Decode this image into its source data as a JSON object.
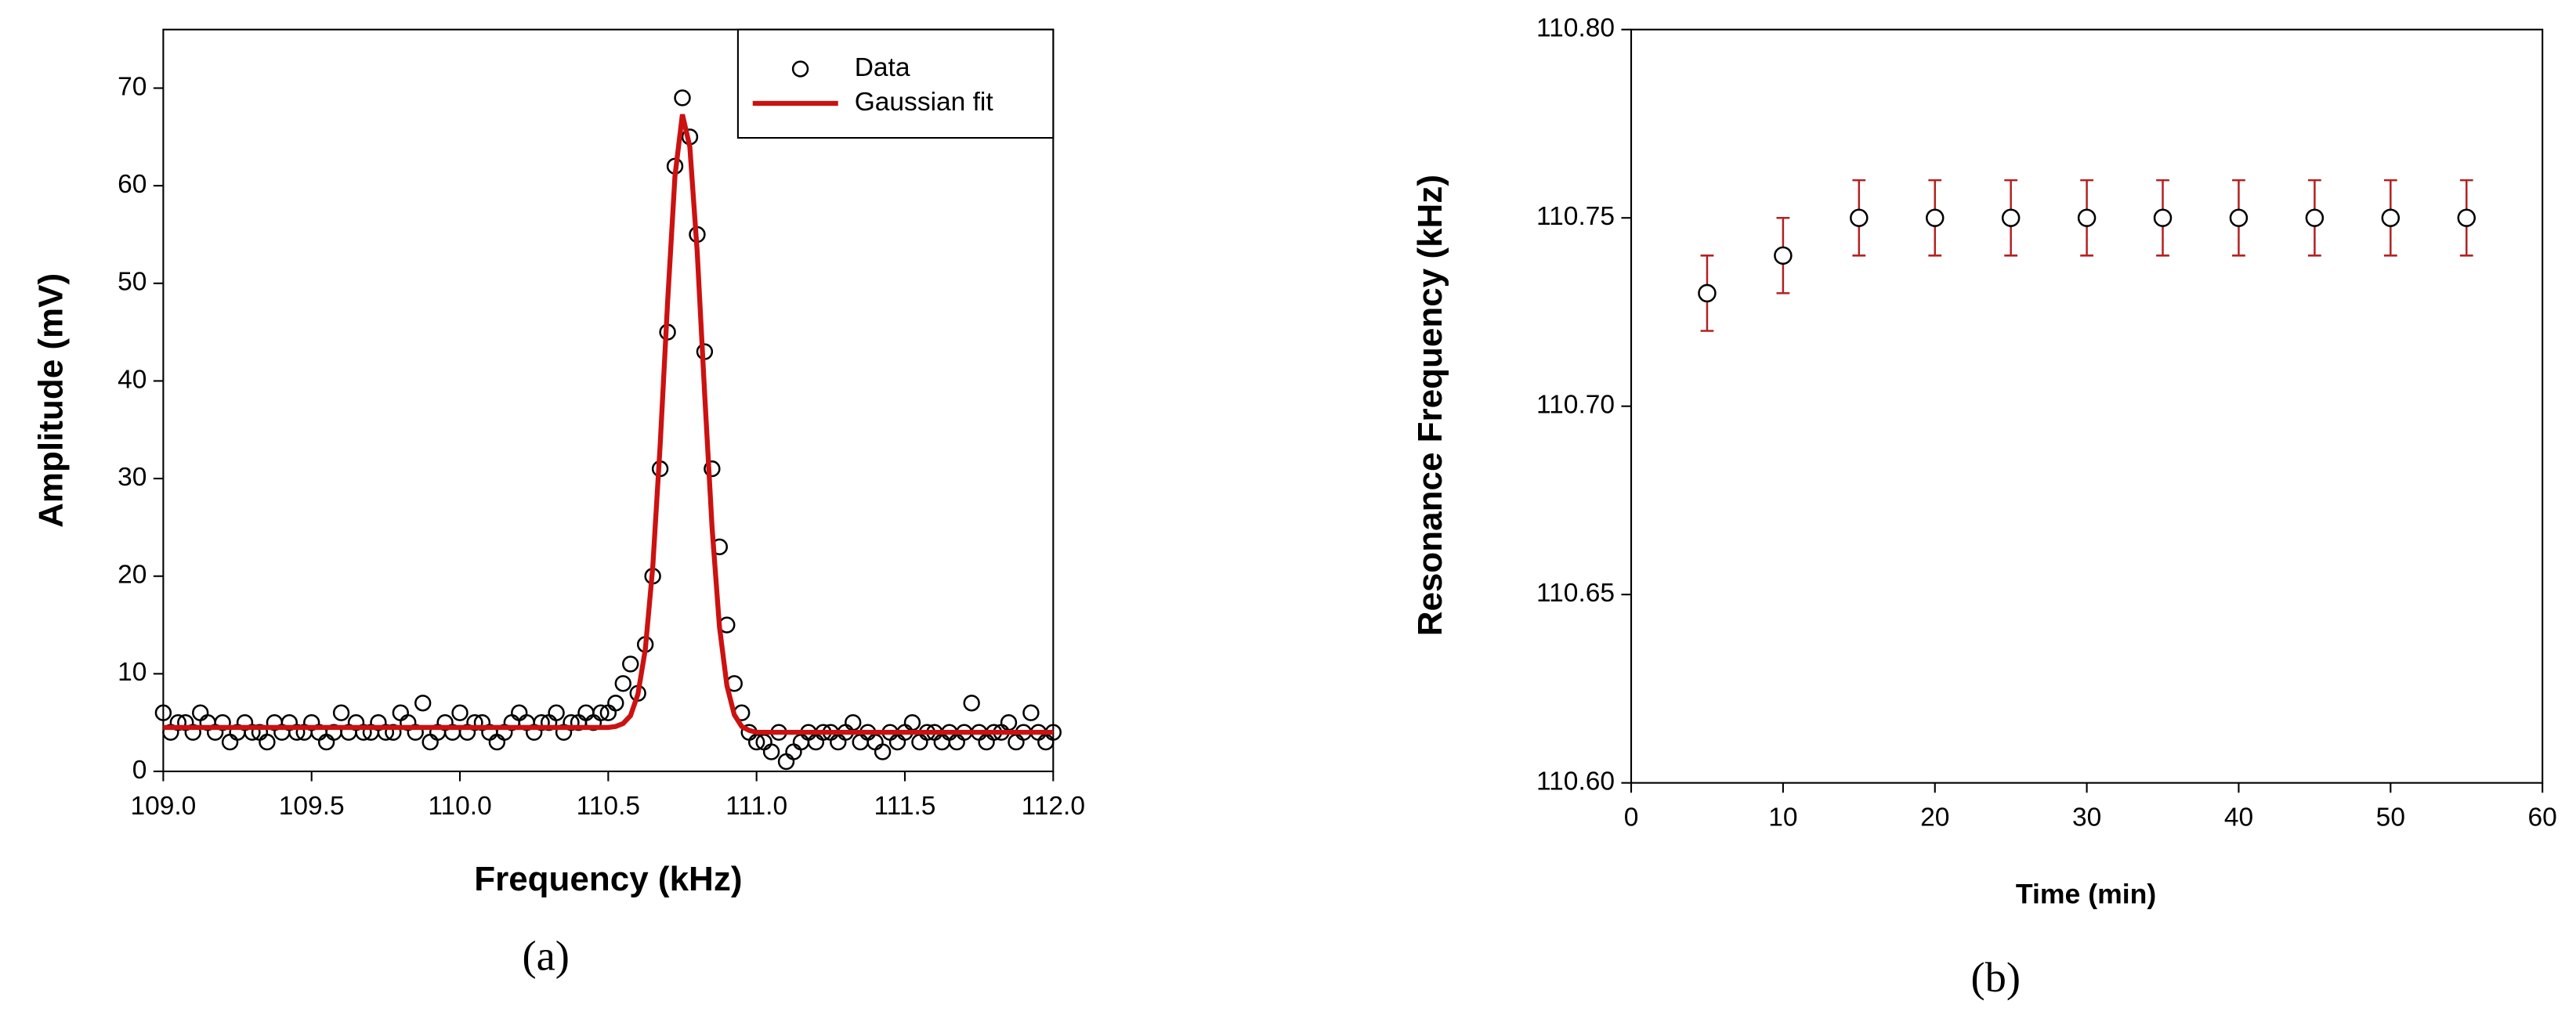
{
  "chart_data": [
    {
      "type": "scatter",
      "panel_label": "(a)",
      "x_label": "Frequency (kHz)",
      "y_label": "Amplitude (mV)",
      "x": [
        109.0,
        109.025,
        109.05,
        109.075,
        109.1,
        109.125,
        109.15,
        109.175,
        109.2,
        109.225,
        109.25,
        109.275,
        109.3,
        109.325,
        109.35,
        109.375,
        109.4,
        109.425,
        109.45,
        109.475,
        109.5,
        109.525,
        109.55,
        109.575,
        109.6,
        109.625,
        109.65,
        109.675,
        109.7,
        109.725,
        109.75,
        109.775,
        109.8,
        109.825,
        109.85,
        109.875,
        109.9,
        109.925,
        109.95,
        109.975,
        110.0,
        110.025,
        110.05,
        110.075,
        110.1,
        110.125,
        110.15,
        110.175,
        110.2,
        110.225,
        110.25,
        110.275,
        110.3,
        110.325,
        110.35,
        110.375,
        110.4,
        110.425,
        110.45,
        110.475,
        110.5,
        110.525,
        110.55,
        110.575,
        110.6,
        110.625,
        110.65,
        110.675,
        110.7,
        110.725,
        110.75,
        110.775,
        110.8,
        110.825,
        110.85,
        110.875,
        110.9,
        110.925,
        110.95,
        110.975,
        111.0,
        111.025,
        111.05,
        111.075,
        111.1,
        111.125,
        111.15,
        111.175,
        111.2,
        111.225,
        111.25,
        111.275,
        111.3,
        111.325,
        111.35,
        111.375,
        111.4,
        111.425,
        111.45,
        111.475,
        111.5,
        111.525,
        111.55,
        111.575,
        111.6,
        111.625,
        111.65,
        111.675,
        111.7,
        111.725,
        111.75,
        111.775,
        111.8,
        111.825,
        111.85,
        111.875,
        111.9,
        111.925,
        111.95,
        111.975,
        112.0
      ],
      "series": [
        {
          "name": "Data",
          "type": "scatter",
          "color": "#000000",
          "values": [
            6,
            4,
            5,
            5,
            4,
            6,
            5,
            4,
            5,
            3,
            4,
            5,
            4,
            4,
            3,
            5,
            4,
            5,
            4,
            4,
            5,
            4,
            3,
            4,
            6,
            4,
            5,
            4,
            4,
            5,
            4,
            4,
            6,
            5,
            4,
            7,
            3,
            4,
            5,
            4,
            6,
            4,
            5,
            5,
            4,
            3,
            4,
            5,
            6,
            5,
            4,
            5,
            5,
            6,
            4,
            5,
            5,
            6,
            5,
            6,
            6,
            7,
            9,
            11,
            8,
            13,
            20,
            31,
            45,
            62,
            69,
            65,
            55,
            43,
            31,
            23,
            15,
            9,
            6,
            4,
            3,
            3,
            2,
            4,
            1,
            2,
            3,
            4,
            3,
            4,
            4,
            3,
            4,
            5,
            3,
            4,
            3,
            2,
            4,
            3,
            4,
            5,
            3,
            4,
            4,
            3,
            4,
            3,
            4,
            7,
            4,
            3,
            4,
            4,
            5,
            3,
            4,
            6,
            4,
            3,
            4
          ]
        },
        {
          "name": "Gaussian fit",
          "type": "line",
          "color": "#cc1111",
          "values": [
            4.5,
            4.5,
            4.5,
            4.5,
            4.5,
            4.5,
            4.5,
            4.5,
            4.5,
            4.5,
            4.5,
            4.5,
            4.5,
            4.5,
            4.5,
            4.5,
            4.5,
            4.5,
            4.5,
            4.5,
            4.5,
            4.5,
            4.5,
            4.5,
            4.5,
            4.5,
            4.5,
            4.5,
            4.5,
            4.5,
            4.5,
            4.5,
            4.5,
            4.5,
            4.5,
            4.5,
            4.5,
            4.5,
            4.5,
            4.5,
            4.5,
            4.5,
            4.5,
            4.5,
            4.5,
            4.5,
            4.5,
            4.5,
            4.5,
            4.5,
            4.5,
            4.5,
            4.5,
            4.5,
            4.5,
            4.5,
            4.5,
            4.5,
            4.5,
            4.5,
            4.5,
            4.6,
            4.9,
            5.7,
            7.9,
            12.5,
            20.9,
            33.4,
            48,
            61,
            67.3,
            64,
            53.2,
            38.7,
            25,
            14.8,
            8.8,
            5.8,
            4.6,
            4.2,
            4.0,
            4.0,
            4.0,
            4.0,
            4.0,
            4.0,
            4.0,
            4.0,
            4.0,
            4.0,
            4.0,
            4.0,
            4.0,
            4.0,
            4.0,
            4.0,
            4.0,
            4.0,
            4.0,
            4.0,
            4.0,
            4.0,
            4.0,
            4.0,
            4.0,
            4.0,
            4.0,
            4.0,
            4.0,
            4.0,
            4.0,
            4.0,
            4.0,
            4.0,
            4.0,
            4.0,
            4.0,
            4.0,
            4.0,
            4.0,
            4.0
          ]
        }
      ],
      "xlim": [
        109.0,
        112.0
      ],
      "xticks": [
        {
          "value": 109.0,
          "label": "109.0"
        },
        109.5,
        {
          "value": 110.0,
          "label": "110.0"
        },
        110.5,
        {
          "value": 111.0,
          "label": "111.0"
        },
        111.5,
        {
          "value": 112.0,
          "label": "112.0"
        }
      ],
      "ylim": [
        0,
        76
      ],
      "yticks": [
        0,
        10,
        20,
        30,
        40,
        50,
        60,
        70
      ],
      "legend": "upper right"
    },
    {
      "type": "errorbar",
      "panel_label": "(b)",
      "x_label": "Time (min)",
      "y_label": "Resonance Frequency (kHz)",
      "x": [
        5,
        10,
        15,
        20,
        25,
        30,
        35,
        40,
        45,
        50,
        55
      ],
      "values": [
        110.73,
        110.74,
        110.75,
        110.75,
        110.75,
        110.75,
        110.75,
        110.75,
        110.75,
        110.75,
        110.75
      ],
      "errors": [
        0.01,
        0.01,
        0.01,
        0.01,
        0.01,
        0.01,
        0.01,
        0.01,
        0.01,
        0.01,
        0.01
      ],
      "color": "#000000",
      "error_color": "#b22222",
      "xlim": [
        0,
        60
      ],
      "xticks": [
        0,
        10,
        20,
        30,
        40,
        50,
        60
      ],
      "ylim": [
        110.6,
        110.8
      ],
      "yticks": [
        {
          "value": 110.6,
          "label": "110.60"
        },
        110.65,
        {
          "value": 110.7,
          "label": "110.70"
        },
        110.75,
        {
          "value": 110.8,
          "label": "110.80"
        }
      ]
    }
  ]
}
